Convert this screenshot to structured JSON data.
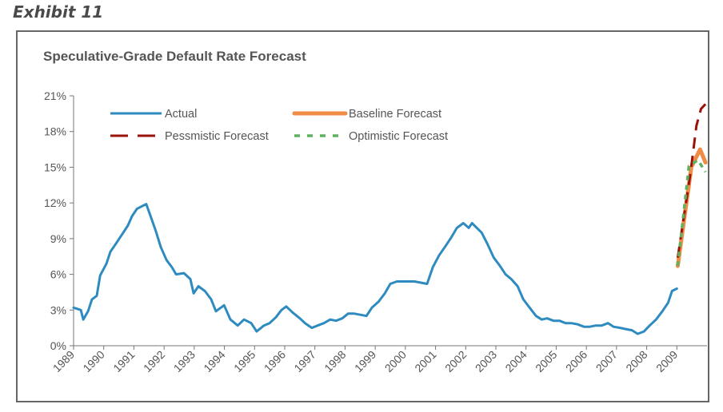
{
  "exhibit_label": "Exhibit 11",
  "chart_data": {
    "type": "line",
    "title": "Speculative-Grade Default Rate Forecast",
    "xlabel": "",
    "ylabel": "",
    "xlim": [
      1989,
      2010
    ],
    "ylim": [
      0,
      21
    ],
    "x_ticks": [
      "1989",
      "1990",
      "1991",
      "1992",
      "1993",
      "1994",
      "1995",
      "1996",
      "1997",
      "1998",
      "1999",
      "2000",
      "2001",
      "2002",
      "2003",
      "2004",
      "2005",
      "2006",
      "2007",
      "2008",
      "2009"
    ],
    "y_ticks": [
      "0%",
      "3%",
      "6%",
      "9%",
      "12%",
      "15%",
      "18%",
      "21%"
    ],
    "y_tick_values": [
      0,
      3,
      6,
      9,
      12,
      15,
      18,
      21
    ],
    "grid": false,
    "legend_placement": "top-left",
    "series": [
      {
        "name": "Actual",
        "color": "#2e8bc0",
        "style": "solid",
        "x": [
          1989.0,
          1989.24,
          1989.32,
          1989.48,
          1989.61,
          1989.77,
          1989.88,
          1990.09,
          1990.22,
          1990.41,
          1990.67,
          1990.8,
          1990.94,
          1991.1,
          1991.25,
          1991.41,
          1991.55,
          1991.73,
          1991.89,
          1992.08,
          1992.26,
          1992.4,
          1992.66,
          1992.87,
          1992.98,
          1993.14,
          1993.35,
          1993.56,
          1993.72,
          1993.99,
          1994.2,
          1994.44,
          1994.65,
          1994.89,
          1995.07,
          1995.31,
          1995.5,
          1995.71,
          1995.89,
          1996.05,
          1996.26,
          1996.5,
          1996.67,
          1996.9,
          1997.09,
          1997.3,
          1997.51,
          1997.7,
          1997.91,
          1998.1,
          1998.31,
          1998.5,
          1998.71,
          1998.89,
          1999.11,
          1999.32,
          1999.5,
          1999.72,
          1999.91,
          2000.11,
          2000.3,
          2000.51,
          2000.72,
          2000.91,
          2001.12,
          2001.31,
          2001.52,
          2001.71,
          2001.92,
          2002.1,
          2002.21,
          2002.53,
          2002.71,
          2002.93,
          2003.11,
          2003.32,
          2003.51,
          2003.72,
          2003.91,
          2004.12,
          2004.33,
          2004.52,
          2004.7,
          2004.91,
          2005.11,
          2005.31,
          2005.5,
          2005.71,
          2005.92,
          2006.11,
          2006.32,
          2006.51,
          2006.72,
          2006.9,
          2007.12,
          2007.3,
          2007.51,
          2007.7,
          2007.91,
          2008.1,
          2008.31,
          2008.52,
          2008.71,
          2008.84,
          2009.0
        ],
        "y": [
          3.2,
          3.0,
          2.2,
          2.9,
          3.9,
          4.2,
          5.9,
          6.9,
          7.9,
          8.6,
          9.6,
          10.1,
          10.9,
          11.5,
          11.7,
          11.9,
          10.9,
          9.6,
          8.3,
          7.2,
          6.6,
          6.0,
          6.1,
          5.6,
          4.4,
          5.0,
          4.6,
          3.9,
          2.9,
          3.4,
          2.2,
          1.7,
          2.2,
          1.9,
          1.2,
          1.7,
          1.9,
          2.4,
          3.0,
          3.3,
          2.8,
          2.3,
          1.9,
          1.5,
          1.7,
          1.9,
          2.2,
          2.1,
          2.3,
          2.7,
          2.7,
          2.6,
          2.5,
          3.2,
          3.7,
          4.4,
          5.2,
          5.4,
          5.4,
          5.4,
          5.4,
          5.3,
          5.2,
          6.6,
          7.6,
          8.3,
          9.1,
          9.9,
          10.3,
          9.9,
          10.3,
          9.5,
          8.6,
          7.4,
          6.8,
          6.0,
          5.6,
          5.0,
          3.9,
          3.2,
          2.5,
          2.2,
          2.3,
          2.1,
          2.1,
          1.9,
          1.9,
          1.8,
          1.6,
          1.6,
          1.7,
          1.7,
          1.9,
          1.6,
          1.5,
          1.4,
          1.3,
          1.0,
          1.2,
          1.7,
          2.2,
          2.9,
          3.6,
          4.6,
          4.8
        ]
      },
      {
        "name": "Baseline Forecast",
        "color": "#f08c46",
        "style": "solid-thick",
        "x": [
          2009.03,
          2009.48,
          2009.77,
          2009.95
        ],
        "y": [
          6.7,
          15.0,
          16.5,
          15.4
        ]
      },
      {
        "name": "Pessmistic Forecast",
        "color": "#9b1208",
        "style": "dashed",
        "x": [
          2009.03,
          2009.45,
          2009.65,
          2009.8,
          2009.95
        ],
        "y": [
          7.4,
          14.5,
          18.5,
          19.9,
          20.3
        ]
      },
      {
        "name": "Optimistic Forecast",
        "color": "#5fb05f",
        "style": "dotted",
        "x": [
          2009.03,
          2009.4,
          2009.7,
          2009.95
        ],
        "y": [
          6.7,
          15.1,
          15.6,
          14.6
        ]
      }
    ]
  }
}
